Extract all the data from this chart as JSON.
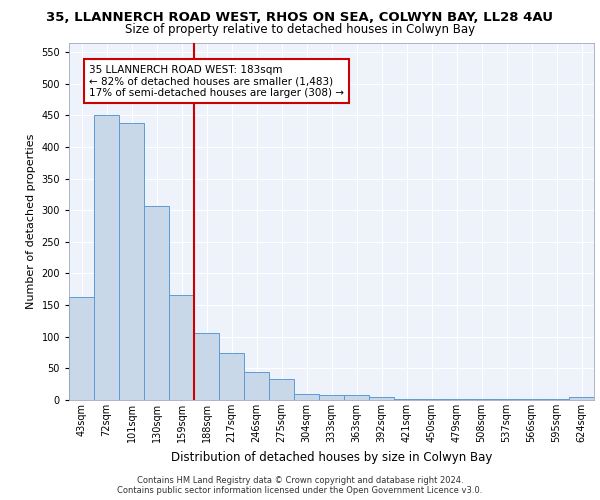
{
  "title1": "35, LLANNERCH ROAD WEST, RHOS ON SEA, COLWYN BAY, LL28 4AU",
  "title2": "Size of property relative to detached houses in Colwyn Bay",
  "xlabel": "Distribution of detached houses by size in Colwyn Bay",
  "ylabel": "Number of detached properties",
  "categories": [
    "43sqm",
    "72sqm",
    "101sqm",
    "130sqm",
    "159sqm",
    "188sqm",
    "217sqm",
    "246sqm",
    "275sqm",
    "304sqm",
    "333sqm",
    "363sqm",
    "392sqm",
    "421sqm",
    "450sqm",
    "479sqm",
    "508sqm",
    "537sqm",
    "566sqm",
    "595sqm",
    "624sqm"
  ],
  "values": [
    163,
    450,
    437,
    307,
    166,
    106,
    74,
    44,
    33,
    10,
    8,
    8,
    5,
    2,
    2,
    2,
    2,
    2,
    2,
    2,
    5
  ],
  "bar_color": "#c8d8e8",
  "bar_edge_color": "#5b9bd5",
  "vline_color": "#cc0000",
  "annotation_text": "35 LLANNERCH ROAD WEST: 183sqm\n← 82% of detached houses are smaller (1,483)\n17% of semi-detached houses are larger (308) →",
  "annotation_box_color": "#ffffff",
  "annotation_box_edge": "#cc0000",
  "ylim": [
    0,
    565
  ],
  "yticks": [
    0,
    50,
    100,
    150,
    200,
    250,
    300,
    350,
    400,
    450,
    500,
    550
  ],
  "footer": "Contains HM Land Registry data © Crown copyright and database right 2024.\nContains public sector information licensed under the Open Government Licence v3.0.",
  "bg_color": "#eef2fa",
  "grid_color": "#ffffff",
  "title1_fontsize": 9.5,
  "title2_fontsize": 8.5,
  "xlabel_fontsize": 8.5,
  "ylabel_fontsize": 8,
  "footer_fontsize": 6,
  "tick_fontsize": 7,
  "annot_fontsize": 7.5
}
